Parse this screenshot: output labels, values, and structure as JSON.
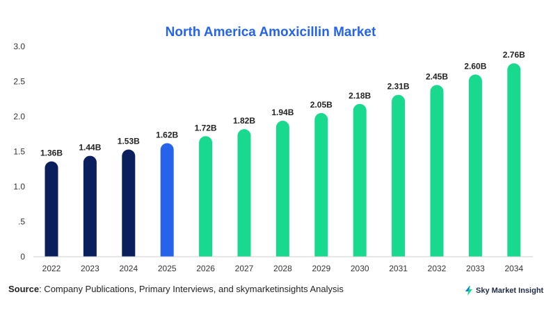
{
  "chart_data": {
    "type": "bar",
    "title": "North America Amoxicillin Market",
    "xlabel": "",
    "ylabel": "",
    "categories": [
      "2022",
      "2023",
      "2024",
      "2025",
      "2026",
      "2027",
      "2028",
      "2029",
      "2030",
      "2031",
      "2032",
      "2033",
      "2034"
    ],
    "values": [
      1.36,
      1.44,
      1.53,
      1.62,
      1.72,
      1.82,
      1.94,
      2.05,
      2.18,
      2.31,
      2.45,
      2.6,
      2.76
    ],
    "data_labels": [
      "1.36B",
      "1.44B",
      "1.53B",
      "1.62B",
      "1.72B",
      "1.82B",
      "1.94B",
      "2.05B",
      "2.18B",
      "2.31B",
      "2.45B",
      "2.60B",
      "2.76B"
    ],
    "ylim": [
      0,
      3.0
    ],
    "yticks": [
      "0",
      ".5",
      "1.0",
      "1.5",
      "2.0",
      "2.5",
      "3.0"
    ],
    "ytick_values": [
      0,
      0.5,
      1.0,
      1.5,
      2.0,
      2.5,
      3.0
    ],
    "grid": false,
    "legend": "none",
    "colors": {
      "historical": "#0b1f5c",
      "current": "#2563eb",
      "forecast": "#19d98e",
      "title": "#2563eb"
    },
    "bar_color_groups": [
      "historical",
      "historical",
      "historical",
      "current",
      "forecast",
      "forecast",
      "forecast",
      "forecast",
      "forecast",
      "forecast",
      "forecast",
      "forecast",
      "forecast"
    ]
  },
  "footer": {
    "source_label": "Source",
    "source_text": ": Company Publications, Primary Interviews, and skymarketinsights Analysis",
    "brand": "Sky Market Insights",
    "brand_icon": "bolt-icon"
  }
}
